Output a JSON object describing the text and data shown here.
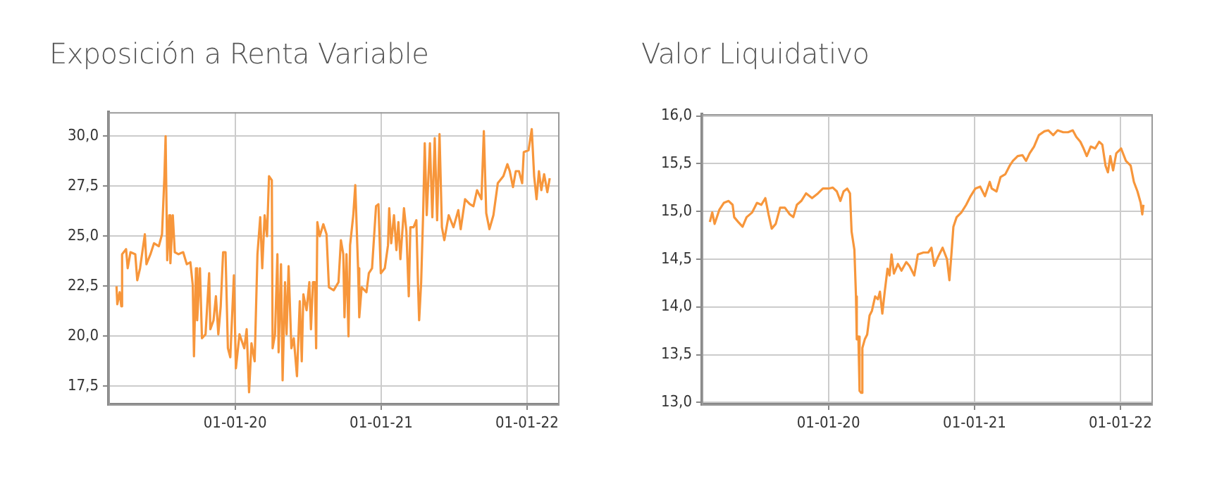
{
  "chart_data": [
    {
      "type": "line",
      "title": "Exposición a Renta Variable",
      "color": "#f7963b",
      "marker": "none",
      "grid": true,
      "xlim": [
        "2019-02-18",
        "2022-03-20"
      ],
      "xticks": [
        {
          "value": "2020-01-01",
          "label": "01-01-20"
        },
        {
          "value": "2021-01-01",
          "label": "01-01-21"
        },
        {
          "value": "2022-01-01",
          "label": "01-01-22"
        }
      ],
      "ylim": [
        16.6,
        31.2
      ],
      "yticks": [
        {
          "value": 17.5,
          "label": "17,5"
        },
        {
          "value": 20,
          "label": "20,0"
        },
        {
          "value": 22.5,
          "label": "22,5"
        },
        {
          "value": 25,
          "label": "25,0"
        },
        {
          "value": 27.5,
          "label": "27,5"
        },
        {
          "value": 30,
          "label": "30,0"
        }
      ],
      "x": [
        "2019-03-10",
        "2019-03-12",
        "2019-03-18",
        "2019-03-22",
        "2019-03-24",
        "2019-04-03",
        "2019-04-07",
        "2019-04-14",
        "2019-04-26",
        "2019-05-01",
        "2019-05-08",
        "2019-05-20",
        "2019-05-24",
        "2019-06-03",
        "2019-06-12",
        "2019-06-24",
        "2019-07-02",
        "2019-07-08",
        "2019-07-11",
        "2019-07-15",
        "2019-07-20",
        "2019-07-23",
        "2019-07-29",
        "2019-08-03",
        "2019-08-12",
        "2019-08-24",
        "2019-09-02",
        "2019-09-11",
        "2019-09-17",
        "2019-09-20",
        "2019-09-25",
        "2019-09-28",
        "2019-10-05",
        "2019-10-10",
        "2019-10-19",
        "2019-10-28",
        "2019-10-31",
        "2019-11-08",
        "2019-11-14",
        "2019-11-20",
        "2019-11-26",
        "2019-12-02",
        "2019-12-08",
        "2019-12-14",
        "2019-12-20",
        "2019-12-29",
        "2020-01-03",
        "2020-01-12",
        "2020-01-24",
        "2020-01-30",
        "2020-02-05",
        "2020-02-11",
        "2020-02-19",
        "2020-02-26",
        "2020-03-04",
        "2020-03-09",
        "2020-03-15",
        "2020-03-21",
        "2020-03-26",
        "2020-04-02",
        "2020-04-04",
        "2020-04-10",
        "2020-04-16",
        "2020-04-19",
        "2020-04-25",
        "2020-04-29",
        "2020-05-05",
        "2020-05-09",
        "2020-05-14",
        "2020-05-21",
        "2020-05-27",
        "2020-06-04",
        "2020-06-11",
        "2020-06-16",
        "2020-06-20",
        "2020-06-28",
        "2020-07-05",
        "2020-07-09",
        "2020-07-14",
        "2020-07-19",
        "2020-07-22",
        "2020-07-25",
        "2020-07-31",
        "2020-08-09",
        "2020-08-17",
        "2020-08-23",
        "2020-09-04",
        "2020-09-16",
        "2020-09-22",
        "2020-09-28",
        "2020-10-01",
        "2020-10-06",
        "2020-10-11",
        "2020-10-15",
        "2020-10-23",
        "2020-10-28",
        "2020-11-04",
        "2020-11-07",
        "2020-11-13",
        "2020-11-25",
        "2020-12-01",
        "2020-12-09",
        "2020-12-19",
        "2020-12-25",
        "2020-12-31",
        "2021-01-10",
        "2021-01-18",
        "2021-01-21",
        "2021-01-26",
        "2021-02-02",
        "2021-02-08",
        "2021-02-13",
        "2021-02-18",
        "2021-02-27",
        "2021-03-05",
        "2021-03-11",
        "2021-03-15",
        "2021-03-23",
        "2021-03-30",
        "2021-04-03",
        "2021-04-06",
        "2021-04-11",
        "2021-04-16",
        "2021-04-20",
        "2021-04-25",
        "2021-05-03",
        "2021-05-09",
        "2021-05-15",
        "2021-05-21",
        "2021-05-27",
        "2021-06-02",
        "2021-06-08",
        "2021-06-19",
        "2021-07-01",
        "2021-07-13",
        "2021-07-19",
        "2021-07-30",
        "2021-08-11",
        "2021-08-20",
        "2021-08-29",
        "2021-09-09",
        "2021-09-15",
        "2021-09-21",
        "2021-09-29",
        "2021-10-09",
        "2021-10-20",
        "2021-11-03",
        "2021-11-13",
        "2021-11-19",
        "2021-11-27",
        "2021-12-04",
        "2021-12-12",
        "2021-12-20",
        "2021-12-24",
        "2022-01-05",
        "2022-01-13",
        "2022-01-19",
        "2022-01-25",
        "2022-01-31",
        "2022-02-06",
        "2022-02-13",
        "2022-02-21",
        "2022-02-27"
      ],
      "values": [
        22.5,
        21.6,
        22.2,
        21.5,
        24.1,
        24.35,
        23.4,
        24.2,
        24.1,
        22.8,
        23.4,
        25.1,
        23.6,
        24.1,
        24.65,
        24.5,
        25.1,
        28.0,
        30.0,
        23.8,
        26.05,
        23.65,
        26.05,
        24.2,
        24.1,
        24.2,
        23.6,
        23.7,
        22.55,
        19.0,
        23.4,
        20.8,
        23.4,
        19.9,
        20.1,
        23.15,
        20.35,
        20.8,
        22.0,
        20.1,
        21.5,
        24.2,
        24.2,
        19.4,
        18.95,
        23.05,
        18.4,
        20.1,
        19.4,
        20.35,
        17.2,
        19.65,
        18.75,
        24.1,
        25.95,
        23.4,
        26.05,
        25.0,
        28.0,
        27.8,
        19.4,
        20.1,
        24.1,
        19.2,
        23.6,
        17.8,
        22.7,
        20.1,
        23.5,
        19.4,
        19.9,
        18.0,
        21.75,
        18.75,
        22.1,
        21.3,
        22.7,
        20.35,
        22.7,
        22.7,
        19.4,
        25.7,
        25.0,
        25.6,
        25.1,
        22.45,
        22.3,
        22.7,
        24.8,
        24.1,
        20.95,
        24.1,
        20.0,
        24.55,
        26.05,
        27.55,
        23.4,
        20.95,
        22.45,
        22.2,
        23.15,
        23.4,
        26.5,
        26.6,
        23.15,
        23.4,
        24.55,
        26.4,
        24.65,
        26.05,
        24.3,
        25.7,
        23.85,
        26.4,
        25.25,
        22.0,
        25.45,
        25.45,
        25.8,
        22.7,
        20.8,
        22.7,
        26.15,
        29.65,
        26.05,
        29.65,
        25.95,
        29.9,
        25.8,
        30.1,
        25.45,
        24.8,
        26.05,
        25.45,
        26.3,
        25.35,
        26.85,
        26.6,
        26.5,
        27.3,
        26.85,
        30.25,
        26.15,
        25.35,
        26.05,
        27.65,
        28.0,
        28.6,
        28.25,
        27.45,
        28.25,
        28.25,
        27.65,
        29.2,
        29.3,
        30.35,
        28.0,
        26.85,
        28.25,
        27.3,
        28.1,
        27.2,
        27.9
      ]
    },
    {
      "type": "line",
      "title": "Valor Liquidativo",
      "color": "#f7963b",
      "marker": "none",
      "grid": true,
      "xlim": [
        "2019-02-18",
        "2022-03-20"
      ],
      "xticks": [
        {
          "value": "2020-01-01",
          "label": "01-01-20"
        },
        {
          "value": "2021-01-01",
          "label": "01-01-21"
        },
        {
          "value": "2022-01-01",
          "label": "01-01-22"
        }
      ],
      "ylim": [
        12.98,
        16.02
      ],
      "yticks": [
        {
          "value": 13,
          "label": "13,0"
        },
        {
          "value": 13.5,
          "label": "13,5"
        },
        {
          "value": 14,
          "label": "14,0"
        },
        {
          "value": 14.5,
          "label": "14,5"
        },
        {
          "value": 15,
          "label": "15,0"
        },
        {
          "value": 15.5,
          "label": "15,5"
        },
        {
          "value": 16,
          "label": "16,0"
        }
      ],
      "x": [
        "2019-03-10",
        "2019-03-16",
        "2019-03-22",
        "2019-04-03",
        "2019-04-14",
        "2019-04-26",
        "2019-05-06",
        "2019-05-10",
        "2019-05-20",
        "2019-05-31",
        "2019-06-10",
        "2019-06-24",
        "2019-07-06",
        "2019-07-17",
        "2019-07-27",
        "2019-08-04",
        "2019-08-12",
        "2019-08-22",
        "2019-09-02",
        "2019-09-14",
        "2019-09-26",
        "2019-10-05",
        "2019-10-14",
        "2019-10-25",
        "2019-11-06",
        "2019-11-21",
        "2019-12-06",
        "2019-12-18",
        "2020-01-01",
        "2020-01-12",
        "2020-01-22",
        "2020-01-31",
        "2020-02-08",
        "2020-02-17",
        "2020-02-24",
        "2020-02-28",
        "2020-03-06",
        "2020-03-10",
        "2020-03-12",
        "2020-03-16",
        "2020-03-19",
        "2020-03-23",
        "2020-03-26",
        "2020-04-01",
        "2020-04-07",
        "2020-04-13",
        "2020-04-19",
        "2020-04-27",
        "2020-05-04",
        "2020-05-09",
        "2020-05-15",
        "2020-05-21",
        "2020-05-28",
        "2020-06-02",
        "2020-06-07",
        "2020-06-13",
        "2020-06-23",
        "2020-07-02",
        "2020-07-14",
        "2020-07-22",
        "2020-08-03",
        "2020-08-12",
        "2020-08-26",
        "2020-09-07",
        "2020-09-15",
        "2020-09-22",
        "2020-10-01",
        "2020-10-13",
        "2020-10-24",
        "2020-10-30",
        "2020-11-04",
        "2020-11-09",
        "2020-11-17",
        "2020-11-29",
        "2020-12-11",
        "2020-12-22",
        "2021-01-03",
        "2021-01-15",
        "2021-01-27",
        "2021-02-08",
        "2021-02-13",
        "2021-02-25",
        "2021-03-07",
        "2021-03-19",
        "2021-03-30",
        "2021-04-07",
        "2021-04-19",
        "2021-05-01",
        "2021-05-10",
        "2021-05-19",
        "2021-05-30",
        "2021-06-11",
        "2021-06-25",
        "2021-07-05",
        "2021-07-17",
        "2021-07-28",
        "2021-08-11",
        "2021-08-23",
        "2021-09-04",
        "2021-09-13",
        "2021-09-23",
        "2021-10-01",
        "2021-10-09",
        "2021-10-19",
        "2021-10-30",
        "2021-11-09",
        "2021-11-17",
        "2021-11-25",
        "2021-12-01",
        "2021-12-07",
        "2021-12-14",
        "2021-12-22",
        "2022-01-03",
        "2022-01-15",
        "2022-01-27",
        "2022-02-04",
        "2022-02-13",
        "2022-02-21",
        "2022-02-25",
        "2022-02-28"
      ],
      "values": [
        14.89,
        14.99,
        14.87,
        15.02,
        15.09,
        15.11,
        15.07,
        14.94,
        14.89,
        14.84,
        14.94,
        14.99,
        15.09,
        15.07,
        15.14,
        14.97,
        14.82,
        14.87,
        15.04,
        15.04,
        14.97,
        14.94,
        15.07,
        15.11,
        15.19,
        15.14,
        15.19,
        15.24,
        15.24,
        15.25,
        15.21,
        15.11,
        15.21,
        15.24,
        15.19,
        14.79,
        14.6,
        14.11,
        13.66,
        13.69,
        13.12,
        13.1,
        13.57,
        13.66,
        13.71,
        13.91,
        13.96,
        14.11,
        14.08,
        14.16,
        13.93,
        14.16,
        14.4,
        14.33,
        14.55,
        14.35,
        14.45,
        14.38,
        14.47,
        14.43,
        14.33,
        14.55,
        14.57,
        14.57,
        14.62,
        14.43,
        14.52,
        14.62,
        14.5,
        14.28,
        14.55,
        14.84,
        14.94,
        14.99,
        15.07,
        15.16,
        15.24,
        15.26,
        15.16,
        15.31,
        15.24,
        15.21,
        15.36,
        15.39,
        15.48,
        15.53,
        15.58,
        15.59,
        15.53,
        15.61,
        15.68,
        15.8,
        15.84,
        15.85,
        15.8,
        15.85,
        15.83,
        15.83,
        15.85,
        15.78,
        15.73,
        15.66,
        15.58,
        15.68,
        15.66,
        15.73,
        15.7,
        15.48,
        15.41,
        15.58,
        15.43,
        15.61,
        15.66,
        15.53,
        15.48,
        15.31,
        15.21,
        15.09,
        14.97,
        15.07
      ]
    }
  ]
}
